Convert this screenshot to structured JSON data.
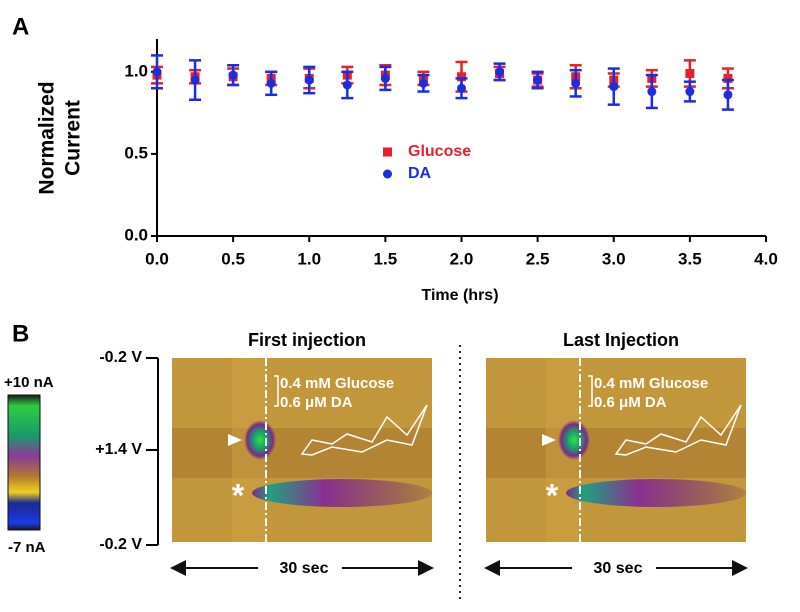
{
  "chart_data": {
    "type": "scatter",
    "panel_label": "A",
    "x_label": "Time (hrs)",
    "y_label": [
      "Normalized",
      "Current"
    ],
    "xlim": [
      0,
      4
    ],
    "ylim": [
      0,
      1.2
    ],
    "xticks": [
      {
        "value": 0,
        "label": "0.0"
      },
      {
        "value": 0.5,
        "label": "0.5"
      },
      {
        "value": 1,
        "label": "1.0"
      },
      {
        "value": 1.5,
        "label": "1.5"
      },
      {
        "value": 2,
        "label": "2.0"
      },
      {
        "value": 2.5,
        "label": "2.5"
      },
      {
        "value": 3,
        "label": "3.0"
      },
      {
        "value": 3.5,
        "label": "3.5"
      },
      {
        "value": 4,
        "label": "4.0"
      }
    ],
    "yticks": [
      {
        "value": 0,
        "label": "0.0"
      },
      {
        "value": 0.5,
        "label": "0.5"
      },
      {
        "value": 1,
        "label": "1.0"
      }
    ],
    "x": [
      0,
      0.25,
      0.5,
      0.75,
      1,
      1.25,
      1.5,
      1.75,
      2,
      2.25,
      2.5,
      2.75,
      3,
      3.25,
      3.5,
      3.75
    ],
    "series": [
      {
        "name": "Glucose",
        "color": "#e8202a",
        "marker": "square",
        "values": [
          0.98,
          0.97,
          0.97,
          0.96,
          0.96,
          0.98,
          0.98,
          0.96,
          0.97,
          0.99,
          0.95,
          0.97,
          0.95,
          0.96,
          0.99,
          0.96
        ],
        "errors": [
          0.05,
          0.04,
          0.05,
          0.04,
          0.06,
          0.05,
          0.06,
          0.04,
          0.09,
          0.04,
          0.04,
          0.07,
          0.04,
          0.05,
          0.08,
          0.06
        ]
      },
      {
        "name": "DA",
        "color": "#1a2ee0",
        "marker": "circle",
        "values": [
          1.0,
          0.95,
          0.98,
          0.93,
          0.95,
          0.92,
          0.96,
          0.93,
          0.9,
          1.0,
          0.95,
          0.93,
          0.91,
          0.88,
          0.88,
          0.86
        ],
        "errors": [
          0.1,
          0.12,
          0.06,
          0.07,
          0.08,
          0.08,
          0.07,
          0.05,
          0.06,
          0.05,
          0.05,
          0.08,
          0.11,
          0.1,
          0.06,
          0.09
        ]
      }
    ]
  },
  "panel_b": {
    "panel_label": "B",
    "colorbar": {
      "top_label": "+10 nA",
      "bottom_label": "-7 nA"
    },
    "voltage_labels": [
      "-0.2 V",
      "+1.4 V",
      "-0.2 V"
    ],
    "plots": [
      {
        "title": "First injection",
        "scale_glucose": "0.4 mM Glucose",
        "scale_da": "0.6 μM  DA",
        "asterisk": "*",
        "time_label": "30 sec"
      },
      {
        "title": "Last Injection",
        "scale_glucose": "0.4 mM Glucose",
        "scale_da": "0.6 μM  DA",
        "asterisk": "*",
        "time_label": "30 sec"
      }
    ]
  }
}
